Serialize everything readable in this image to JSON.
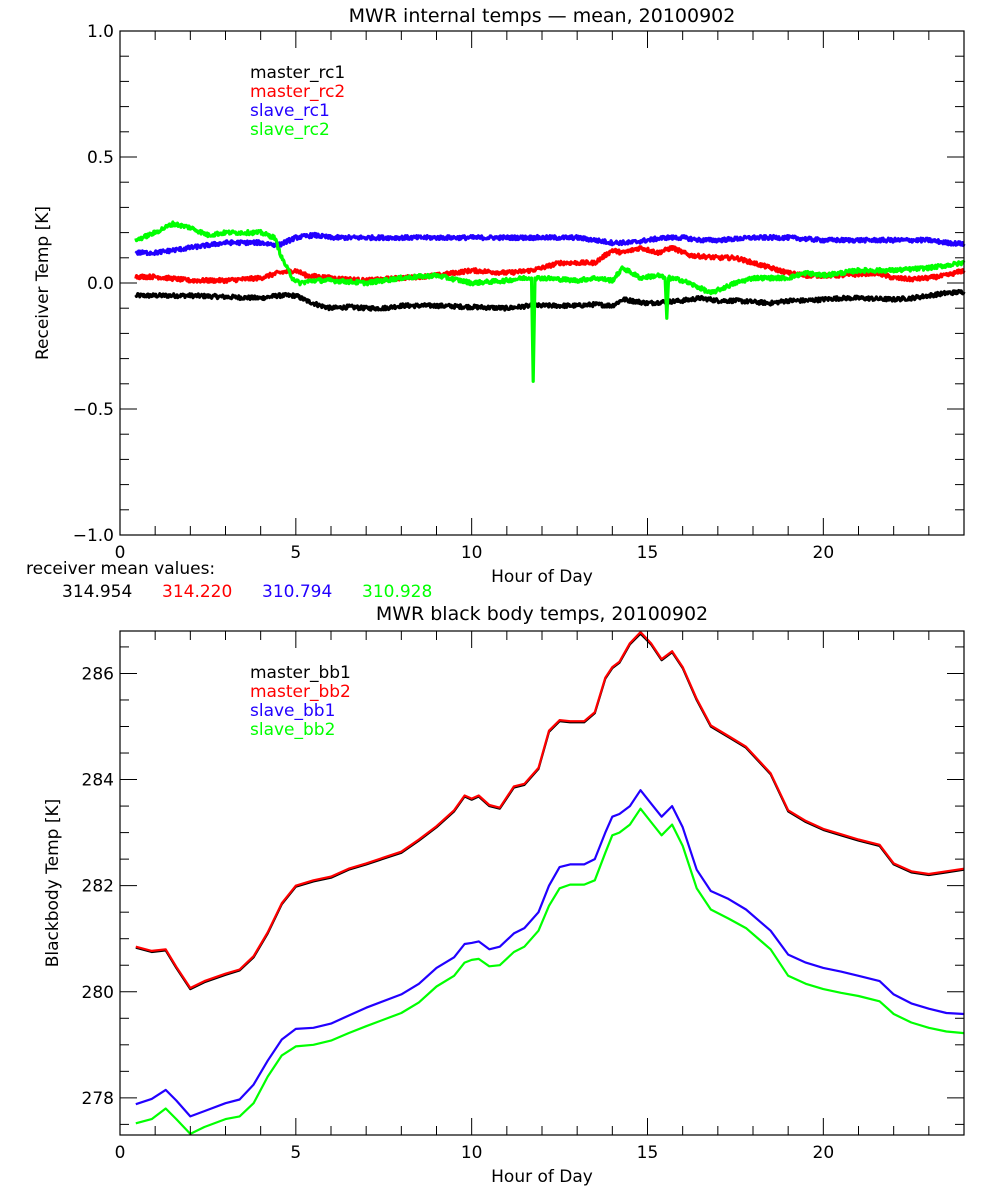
{
  "chart_data": [
    {
      "type": "line",
      "title": "MWR internal temps — mean, 20100902",
      "xlabel": "Hour of Day",
      "ylabel": "Receiver Temp [K]",
      "xlim": [
        0,
        24
      ],
      "ylim": [
        -1.0,
        1.0
      ],
      "xticks": [
        0,
        5,
        10,
        15,
        20
      ],
      "xtick_labels": [
        "0",
        "5",
        "10",
        "15",
        "20"
      ],
      "yticks": [
        -1.0,
        -0.5,
        0.0,
        0.5,
        1.0
      ],
      "ytick_labels": [
        "−1.0",
        "−0.5",
        "0.0",
        "0.5",
        "1.0"
      ],
      "x_minor_step": 1,
      "y_minor_step": 0.1,
      "grid": false,
      "legend_position": "top-left",
      "noisy": true,
      "series": [
        {
          "name": "master_rc1",
          "color": "#000000",
          "x": [
            0.45,
            1,
            2,
            3,
            4,
            4.5,
            5,
            5.3,
            5.7,
            6,
            6.5,
            7,
            7.5,
            8,
            9,
            10,
            11,
            11.7,
            12,
            13,
            13.5,
            14,
            14.3,
            15,
            15.5,
            16,
            16.5,
            17,
            17.5,
            18,
            18.5,
            19,
            19.5,
            20,
            20.5,
            21,
            22,
            22.5,
            23,
            23.5,
            24
          ],
          "y": [
            -0.05,
            -0.05,
            -0.05,
            -0.055,
            -0.06,
            -0.05,
            -0.05,
            -0.07,
            -0.09,
            -0.1,
            -0.095,
            -0.1,
            -0.1,
            -0.09,
            -0.09,
            -0.095,
            -0.1,
            -0.09,
            -0.09,
            -0.09,
            -0.085,
            -0.09,
            -0.065,
            -0.08,
            -0.075,
            -0.07,
            -0.06,
            -0.07,
            -0.07,
            -0.075,
            -0.08,
            -0.07,
            -0.07,
            -0.065,
            -0.06,
            -0.06,
            -0.065,
            -0.06,
            -0.05,
            -0.04,
            -0.035
          ]
        },
        {
          "name": "master_rc2",
          "color": "#ff0000",
          "x": [
            0.45,
            1,
            2,
            3,
            4,
            4.5,
            5,
            5.3,
            6,
            7,
            8,
            9,
            10,
            11,
            11.7,
            12,
            12.5,
            13,
            13.5,
            14,
            14.3,
            14.8,
            15.3,
            15.7,
            16.2,
            17,
            17.5,
            18,
            18.5,
            19,
            19.5,
            20,
            20.5,
            21,
            21.5,
            22,
            22.5,
            23,
            23.5,
            24
          ],
          "y": [
            0.025,
            0.025,
            0.01,
            0.01,
            0.02,
            0.04,
            0.05,
            0.03,
            0.02,
            0.01,
            0.02,
            0.03,
            0.05,
            0.04,
            0.05,
            0.06,
            0.08,
            0.08,
            0.08,
            0.13,
            0.12,
            0.14,
            0.12,
            0.14,
            0.11,
            0.1,
            0.1,
            0.08,
            0.06,
            0.04,
            0.03,
            0.03,
            0.03,
            0.035,
            0.04,
            0.02,
            0.015,
            0.02,
            0.03,
            0.05
          ]
        },
        {
          "name": "slave_rc1",
          "color": "#2200ff",
          "x": [
            0.45,
            1,
            2,
            3,
            4,
            4.5,
            5,
            5.5,
            6,
            7,
            8,
            9,
            10,
            11,
            12,
            13,
            13.5,
            14,
            14.5,
            15,
            15.5,
            16,
            16.5,
            17,
            18,
            19,
            20,
            21,
            22,
            23,
            23.5,
            24
          ],
          "y": [
            0.12,
            0.12,
            0.14,
            0.16,
            0.16,
            0.15,
            0.18,
            0.19,
            0.18,
            0.18,
            0.18,
            0.18,
            0.18,
            0.18,
            0.18,
            0.18,
            0.17,
            0.16,
            0.16,
            0.17,
            0.18,
            0.18,
            0.17,
            0.17,
            0.18,
            0.18,
            0.17,
            0.17,
            0.17,
            0.17,
            0.16,
            0.155
          ]
        },
        {
          "name": "slave_rc2",
          "color": "#00ff00",
          "x": [
            0.45,
            1,
            1.5,
            2,
            2.5,
            3,
            3.5,
            4,
            4.4,
            4.6,
            4.9,
            5.1,
            5.5,
            6,
            7,
            8,
            9,
            10,
            11,
            11.5,
            11.7,
            11.75,
            11.8,
            12,
            13,
            13.5,
            14,
            14.3,
            14.8,
            15.3,
            15.5,
            15.55,
            15.6,
            16,
            16.5,
            16.8,
            17.5,
            18,
            18.5,
            19,
            19.5,
            20,
            21,
            22,
            23,
            24
          ],
          "y": [
            0.17,
            0.2,
            0.235,
            0.22,
            0.19,
            0.2,
            0.2,
            0.2,
            0.18,
            0.1,
            0.02,
            0.0,
            0.01,
            0.01,
            0.0,
            0.02,
            0.03,
            0.0,
            0.01,
            0.02,
            0.02,
            -0.39,
            0.02,
            0.02,
            0.01,
            0.02,
            0.01,
            0.06,
            0.02,
            0.03,
            0.02,
            -0.14,
            0.02,
            0.01,
            -0.02,
            -0.04,
            0.0,
            0.02,
            0.02,
            0.02,
            0.04,
            0.03,
            0.05,
            0.05,
            0.06,
            0.08
          ]
        }
      ],
      "annotation": {
        "label": "receiver mean values:",
        "values": [
          {
            "text": "314.954",
            "color": "#000000"
          },
          {
            "text": "314.220",
            "color": "#ff0000"
          },
          {
            "text": "310.794",
            "color": "#2200ff"
          },
          {
            "text": "310.928",
            "color": "#00ff00"
          }
        ]
      }
    },
    {
      "type": "line",
      "title": "MWR black body temps, 20100902",
      "xlabel": "Hour of Day",
      "ylabel": "Blackbody Temp [K]",
      "xlim": [
        0,
        24
      ],
      "ylim": [
        277.3,
        286.8
      ],
      "xticks": [
        0,
        5,
        10,
        15,
        20
      ],
      "xtick_labels": [
        "0",
        "5",
        "10",
        "15",
        "20"
      ],
      "yticks": [
        278,
        280,
        282,
        284,
        286
      ],
      "ytick_labels": [
        "278",
        "280",
        "282",
        "284",
        "286"
      ],
      "x_minor_step": 1,
      "y_minor_step": 0.5,
      "grid": false,
      "legend_position": "top-left",
      "noisy": false,
      "series": [
        {
          "name": "master_bb1",
          "color": "#000000",
          "x": [
            0.45,
            0.9,
            1.3,
            1.6,
            2.0,
            2.4,
            3.0,
            3.4,
            3.8,
            4.2,
            4.6,
            5.0,
            5.5,
            6.0,
            6.5,
            7.0,
            8.0,
            8.5,
            9.0,
            9.5,
            9.8,
            10.0,
            10.2,
            10.5,
            10.8,
            11.2,
            11.5,
            11.9,
            12.2,
            12.5,
            12.8,
            13.2,
            13.5,
            13.8,
            14.0,
            14.2,
            14.5,
            14.8,
            15.1,
            15.4,
            15.7,
            16.0,
            16.4,
            16.8,
            17.3,
            17.8,
            18.5,
            19.0,
            19.5,
            20.0,
            20.5,
            21.0,
            21.6,
            22.0,
            22.5,
            23.0,
            23.5,
            24.0
          ],
          "y": [
            280.83,
            280.75,
            280.78,
            280.45,
            280.05,
            280.18,
            280.32,
            280.4,
            280.65,
            281.1,
            281.65,
            281.98,
            282.08,
            282.15,
            282.3,
            282.4,
            282.62,
            282.85,
            283.1,
            283.4,
            283.68,
            283.62,
            283.68,
            283.5,
            283.45,
            283.85,
            283.9,
            284.2,
            284.9,
            285.1,
            285.08,
            285.08,
            285.25,
            285.9,
            286.1,
            286.2,
            286.55,
            286.75,
            286.55,
            286.25,
            286.4,
            286.1,
            285.5,
            285.0,
            284.8,
            284.6,
            284.1,
            283.4,
            283.2,
            283.05,
            282.95,
            282.85,
            282.75,
            282.4,
            282.25,
            282.2,
            282.25,
            282.3
          ]
        },
        {
          "name": "master_bb2",
          "color": "#ff0000",
          "x": [
            0.45,
            0.9,
            1.3,
            1.6,
            2.0,
            2.4,
            3.0,
            3.4,
            3.8,
            4.2,
            4.6,
            5.0,
            5.5,
            6.0,
            6.5,
            7.0,
            8.0,
            8.5,
            9.0,
            9.5,
            9.8,
            10.0,
            10.2,
            10.5,
            10.8,
            11.2,
            11.5,
            11.9,
            12.2,
            12.5,
            12.8,
            13.2,
            13.5,
            13.8,
            14.0,
            14.2,
            14.5,
            14.8,
            15.1,
            15.4,
            15.7,
            16.0,
            16.4,
            16.8,
            17.3,
            17.8,
            18.5,
            19.0,
            19.5,
            20.0,
            20.5,
            21.0,
            21.6,
            22.0,
            22.5,
            23.0,
            23.5,
            24.0
          ],
          "y": [
            280.85,
            280.77,
            280.8,
            280.47,
            280.07,
            280.2,
            280.34,
            280.42,
            280.67,
            281.12,
            281.67,
            282.0,
            282.1,
            282.17,
            282.32,
            282.42,
            282.64,
            282.87,
            283.12,
            283.42,
            283.7,
            283.64,
            283.7,
            283.52,
            283.47,
            283.87,
            283.92,
            284.22,
            284.92,
            285.12,
            285.1,
            285.1,
            285.27,
            285.92,
            286.12,
            286.22,
            286.57,
            286.78,
            286.57,
            286.27,
            286.42,
            286.12,
            285.52,
            285.02,
            284.82,
            284.62,
            284.12,
            283.42,
            283.22,
            283.07,
            282.97,
            282.87,
            282.77,
            282.42,
            282.27,
            282.22,
            282.27,
            282.32
          ]
        },
        {
          "name": "slave_bb1",
          "color": "#2200ff",
          "x": [
            0.45,
            0.9,
            1.3,
            1.6,
            2.0,
            2.4,
            3.0,
            3.4,
            3.8,
            4.2,
            4.6,
            5.0,
            5.5,
            6.0,
            6.5,
            7.0,
            8.0,
            8.5,
            9.0,
            9.5,
            9.8,
            10.0,
            10.2,
            10.5,
            10.8,
            11.2,
            11.5,
            11.9,
            12.2,
            12.5,
            12.8,
            13.2,
            13.5,
            13.8,
            14.0,
            14.2,
            14.5,
            14.8,
            15.1,
            15.4,
            15.7,
            16.0,
            16.4,
            16.8,
            17.3,
            17.8,
            18.5,
            19.0,
            19.5,
            20.0,
            20.5,
            21.0,
            21.6,
            22.0,
            22.5,
            23.0,
            23.5,
            24.0
          ],
          "y": [
            277.88,
            277.98,
            278.15,
            277.95,
            277.65,
            277.75,
            277.9,
            277.97,
            278.25,
            278.7,
            279.1,
            279.3,
            279.32,
            279.4,
            279.55,
            279.7,
            279.95,
            280.15,
            280.45,
            280.65,
            280.9,
            280.92,
            280.95,
            280.8,
            280.85,
            281.1,
            281.2,
            281.5,
            282.0,
            282.35,
            282.4,
            282.4,
            282.5,
            283.0,
            283.3,
            283.35,
            283.5,
            283.8,
            283.55,
            283.3,
            283.5,
            283.1,
            282.3,
            281.9,
            281.75,
            281.55,
            281.15,
            280.7,
            280.55,
            280.45,
            280.38,
            280.3,
            280.2,
            279.95,
            279.78,
            279.68,
            279.6,
            279.58
          ]
        },
        {
          "name": "slave_bb2",
          "color": "#00ff00",
          "x": [
            0.45,
            0.9,
            1.3,
            1.6,
            2.0,
            2.4,
            3.0,
            3.4,
            3.8,
            4.2,
            4.6,
            5.0,
            5.5,
            6.0,
            6.5,
            7.0,
            8.0,
            8.5,
            9.0,
            9.5,
            9.8,
            10.0,
            10.2,
            10.5,
            10.8,
            11.2,
            11.5,
            11.9,
            12.2,
            12.5,
            12.8,
            13.2,
            13.5,
            13.8,
            14.0,
            14.2,
            14.5,
            14.8,
            15.1,
            15.4,
            15.7,
            16.0,
            16.4,
            16.8,
            17.3,
            17.8,
            18.5,
            19.0,
            19.5,
            20.0,
            20.5,
            21.0,
            21.6,
            22.0,
            22.5,
            23.0,
            23.5,
            24.0
          ],
          "y": [
            277.52,
            277.6,
            277.8,
            277.6,
            277.32,
            277.45,
            277.6,
            277.65,
            277.9,
            278.4,
            278.8,
            278.97,
            279.0,
            279.08,
            279.22,
            279.35,
            279.6,
            279.8,
            280.1,
            280.3,
            280.55,
            280.6,
            280.62,
            280.48,
            280.5,
            280.75,
            280.85,
            281.15,
            281.62,
            281.95,
            282.02,
            282.02,
            282.1,
            282.62,
            282.95,
            283.0,
            283.15,
            283.45,
            283.2,
            282.95,
            283.15,
            282.75,
            281.95,
            281.55,
            281.38,
            281.2,
            280.8,
            280.3,
            280.15,
            280.05,
            279.98,
            279.92,
            279.82,
            279.58,
            279.42,
            279.32,
            279.25,
            279.22
          ]
        }
      ]
    }
  ]
}
